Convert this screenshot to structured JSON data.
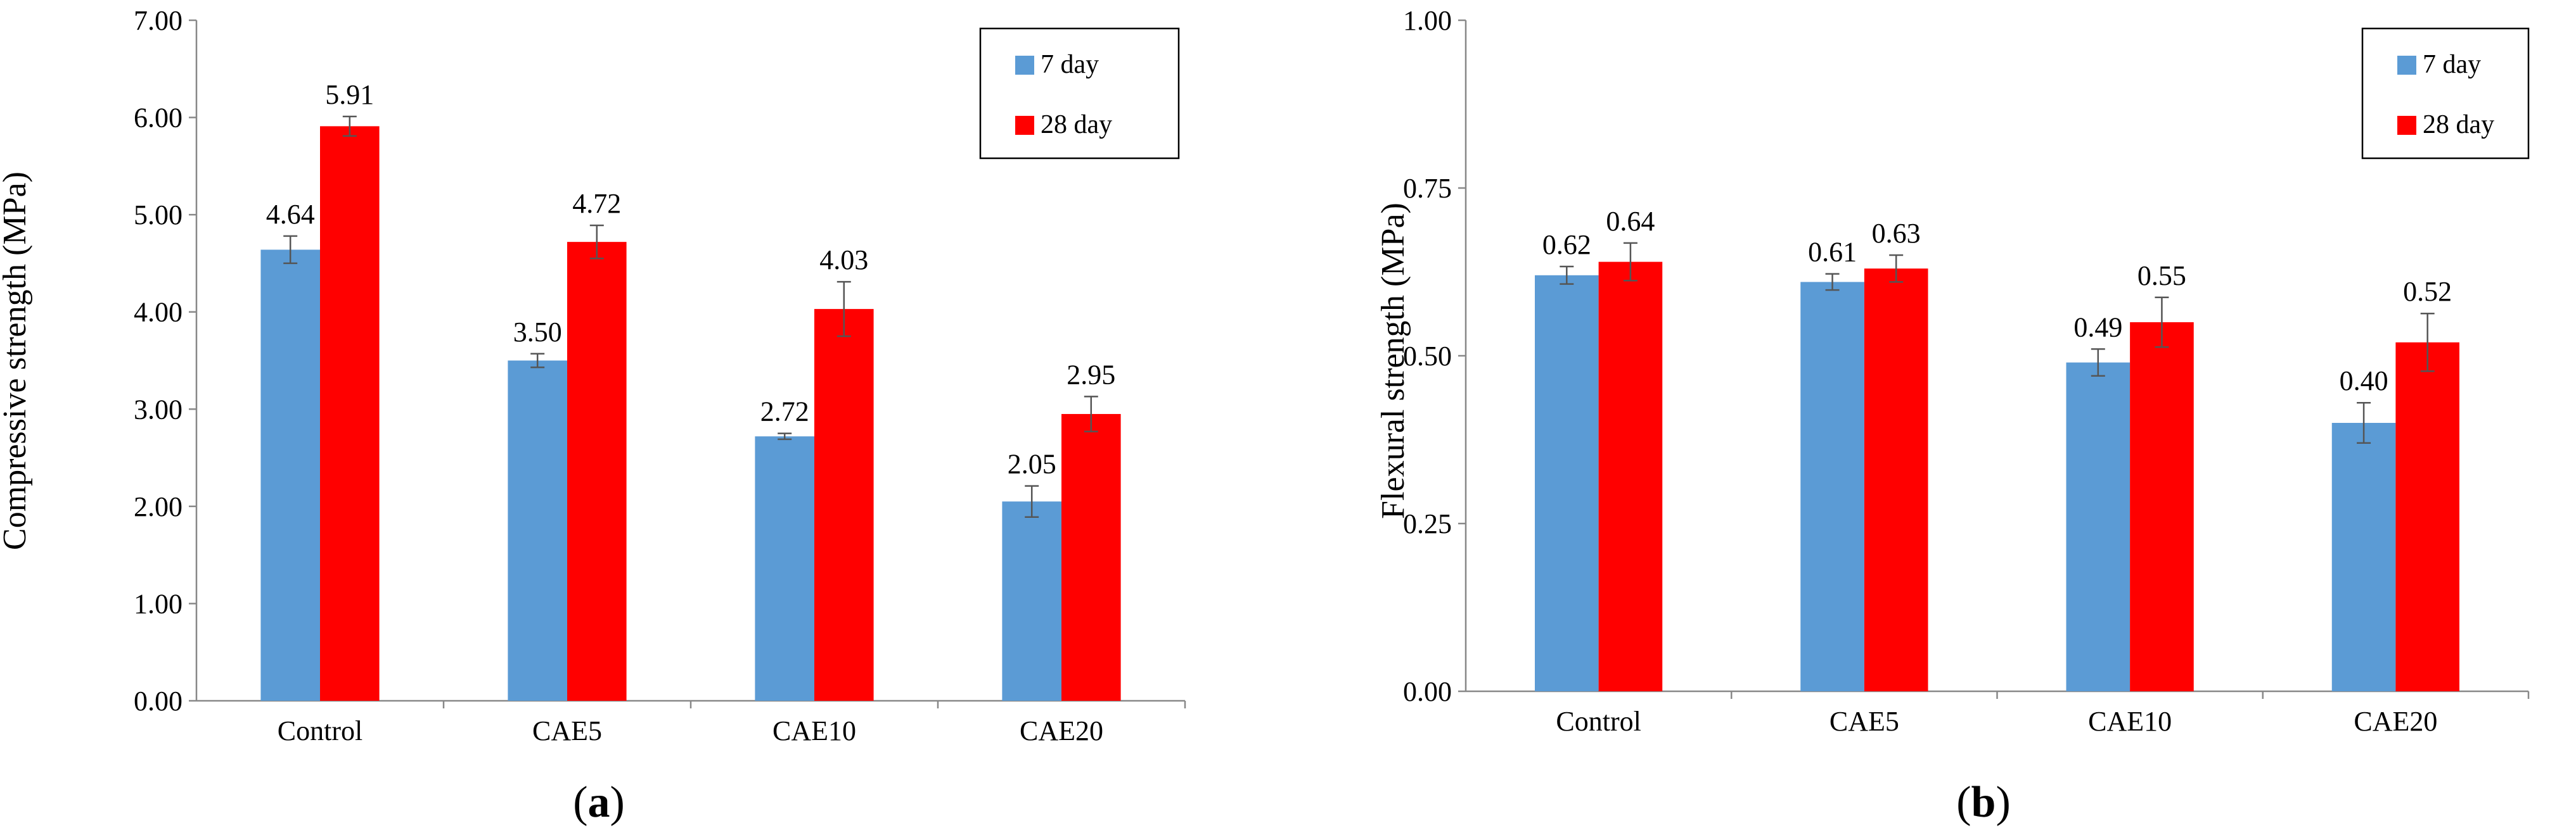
{
  "chart_data": [
    {
      "type": "bar",
      "panel_label": "a",
      "title": "",
      "xlabel": "",
      "ylabel": "Compressive strength (MPa)",
      "ylim": [
        0,
        7
      ],
      "yticks": [
        0,
        1,
        2,
        3,
        4,
        5,
        6,
        7
      ],
      "ytick_labels": [
        "0.00",
        "1.00",
        "2.00",
        "3.00",
        "4.00",
        "5.00",
        "6.00",
        "7.00"
      ],
      "categories": [
        "Control",
        "CAE5",
        "CAE10",
        "CAE20"
      ],
      "series": [
        {
          "name": "7 day",
          "color": "#5B9BD5",
          "values": [
            4.64,
            3.5,
            2.72,
            2.05
          ],
          "labels": [
            "4.64",
            "3.50",
            "2.72",
            "2.05"
          ],
          "errors": [
            0.14,
            0.07,
            0.03,
            0.16
          ]
        },
        {
          "name": "28 day",
          "color": "#FF0000",
          "values": [
            5.91,
            4.72,
            4.03,
            2.95
          ],
          "labels": [
            "5.91",
            "4.72",
            "4.03",
            "2.95"
          ],
          "errors": [
            0.1,
            0.17,
            0.28,
            0.18
          ]
        }
      ],
      "legend": "top-right",
      "grid": false
    },
    {
      "type": "bar",
      "panel_label": "b",
      "title": "",
      "xlabel": "",
      "ylabel": "Flexural strength (MPa)",
      "ylim": [
        0,
        1
      ],
      "yticks": [
        0,
        0.25,
        0.5,
        0.75,
        1
      ],
      "ytick_labels": [
        "0.00",
        "0.25",
        "0.50",
        "0.75",
        "1.00"
      ],
      "categories": [
        "Control",
        "CAE5",
        "CAE10",
        "CAE20"
      ],
      "series": [
        {
          "name": "7 day",
          "color": "#5B9BD5",
          "values": [
            0.62,
            0.61,
            0.49,
            0.4
          ],
          "labels": [
            "0.62",
            "0.61",
            "0.49",
            "0.40"
          ],
          "errors": [
            0.013,
            0.012,
            0.02,
            0.03
          ]
        },
        {
          "name": "28 day",
          "color": "#FF0000",
          "values": [
            0.64,
            0.63,
            0.55,
            0.52
          ],
          "labels": [
            "0.64",
            "0.63",
            "0.55",
            "0.52"
          ],
          "errors": [
            0.028,
            0.02,
            0.037,
            0.043
          ]
        }
      ],
      "legend": "top-right",
      "grid": false
    }
  ]
}
